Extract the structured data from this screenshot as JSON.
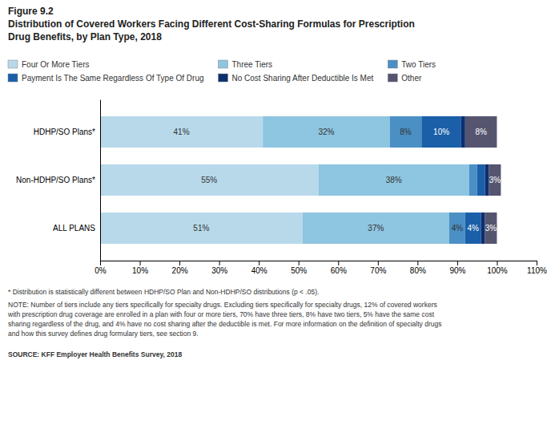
{
  "chart_data": {
    "type": "bar",
    "orientation": "horizontal",
    "stacked": true,
    "title": "Figure 9.2",
    "subtitle": [
      "Distribution of Covered Workers Facing Different Cost-Sharing Formulas for Prescription",
      "Drug Benefits, by Plan Type, 2018"
    ],
    "categories": [
      "HDHP/SO Plans*",
      "Non-HDHP/SO Plans*",
      "ALL PLANS"
    ],
    "series": [
      {
        "name": "Four Or More Tiers",
        "color": "#b8d9ea",
        "values": [
          41,
          55,
          51
        ],
        "value_labels": [
          "41%",
          "55%",
          "51%"
        ]
      },
      {
        "name": "Three Tiers",
        "color": "#8ec5e0",
        "values": [
          32,
          38,
          37
        ],
        "value_labels": [
          "32%",
          "38%",
          "37%"
        ]
      },
      {
        "name": "Two Tiers",
        "color": "#4a90c4",
        "values": [
          8,
          2,
          4
        ],
        "value_labels": [
          "8%",
          null,
          "4%"
        ]
      },
      {
        "name": "Payment Is The Same Regardless Of Type Of Drug",
        "color": "#1a5fa8",
        "values": [
          10,
          2,
          4
        ],
        "value_labels": [
          "10%",
          null,
          "4%"
        ]
      },
      {
        "name": "No Cost Sharing After Deductible Is Met",
        "color": "#0d2f6e",
        "values": [
          1,
          1,
          1
        ],
        "value_labels": [
          null,
          null,
          null
        ]
      },
      {
        "name": "Other",
        "color": "#555570",
        "values": [
          8,
          3,
          3
        ],
        "value_labels": [
          "8%",
          "3%",
          "3%"
        ]
      }
    ],
    "xlim": [
      0,
      110
    ],
    "xticks": [
      {
        "value": 0,
        "label": "0%"
      },
      {
        "value": 10,
        "label": "10%"
      },
      {
        "value": 20,
        "label": "20%"
      },
      {
        "value": 30,
        "label": "30%"
      },
      {
        "value": 40,
        "label": "40%"
      },
      {
        "value": 50,
        "label": "50%"
      },
      {
        "value": 60,
        "label": "60%"
      },
      {
        "value": 70,
        "label": "70%"
      },
      {
        "value": 80,
        "label": "80%"
      },
      {
        "value": 90,
        "label": "90%"
      },
      {
        "value": 100,
        "label": "100%"
      },
      {
        "value": 110,
        "label": "110%"
      }
    ],
    "data_labels": true,
    "grid": false,
    "legend": "upper left",
    "annotations": [
      "* Distribution is statistically different between HDHP/SO Plan and Non-HDHP/SO distributions (p < .05).",
      "NOTE: Number of tiers include any tiers specifically for specialty drugs. Excluding tiers specifically for specialty drugs, 12% of covered workers",
      "with prescription drug coverage are enrolled in a plan with four or more tiers, 70% have three tiers, 8% have two tiers, 5% have the same cost",
      "sharing regardless of the drug, and 4% have no cost sharing after the deductible is met. For more information on the definition of specialty drugs",
      "and how this survey defines drug formulary tiers, see section 9.",
      "SOURCE: KFF Employer Health Benefits Survey, 2018"
    ]
  }
}
